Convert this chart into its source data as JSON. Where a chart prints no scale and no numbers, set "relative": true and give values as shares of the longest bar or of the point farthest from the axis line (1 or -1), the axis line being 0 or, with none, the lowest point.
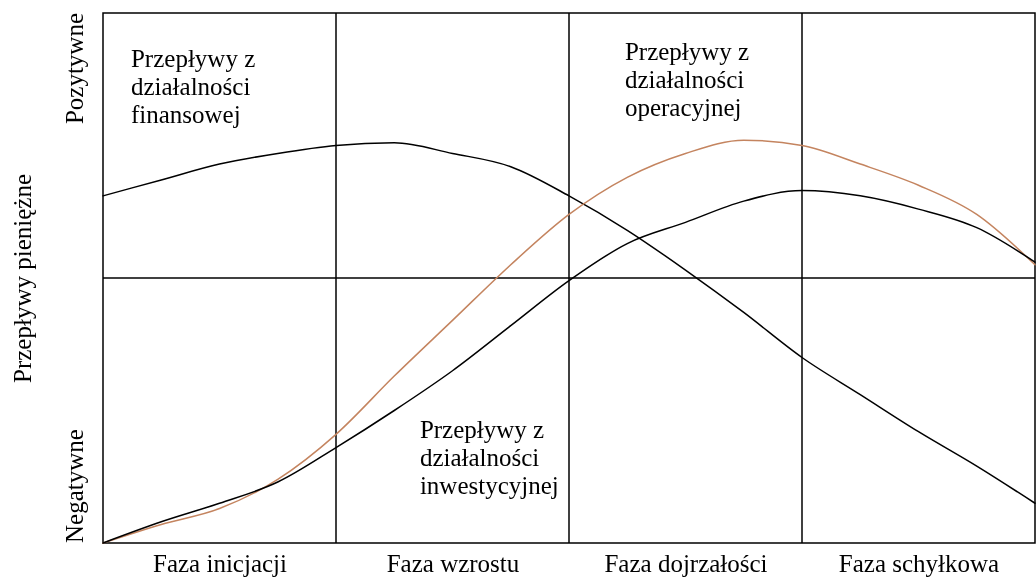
{
  "chart_data": {
    "type": "line",
    "relative": true,
    "ylabel": "Przepływy pieniężne",
    "annotations": [
      "Pozytywne",
      "Negatywne"
    ],
    "categories": [
      null,
      null,
      "Faza inicjacji",
      null,
      null,
      null,
      "Faza wzrostu",
      null,
      null,
      null,
      "Faza dojrzałości",
      null,
      null,
      null,
      "Faza schyłkowa",
      null,
      null
    ],
    "grid": "x",
    "ref_lines": [
      {
        "axis": "y",
        "value": 0,
        "color": "#000000"
      }
    ],
    "series": [
      {
        "name": "Przepływy z działalności finansowej",
        "color": "#000000",
        "values": [
          0.31,
          0.37,
          0.43,
          0.47,
          0.5,
          0.51,
          0.47,
          0.42,
          0.31,
          0.18,
          0.03,
          -0.13,
          -0.3,
          -0.44,
          -0.58,
          -0.71,
          -0.85
        ]
      },
      {
        "name": "Przepływy z działalności operacyjnej",
        "color": "#c4845f",
        "values": [
          -1,
          -0.93,
          -0.87,
          -0.76,
          -0.59,
          -0.37,
          -0.16,
          0.05,
          0.24,
          0.38,
          0.47,
          0.52,
          0.5,
          0.43,
          0.35,
          0.24,
          0.05
        ]
      },
      {
        "name": "Przepływy z działalności inwestycyjnej",
        "color": "#000000",
        "values": [
          -1,
          -0.92,
          -0.85,
          -0.77,
          -0.64,
          -0.5,
          -0.35,
          -0.18,
          -0.01,
          0.13,
          0.21,
          0.29,
          0.33,
          0.31,
          0.26,
          0.19,
          0.06
        ]
      }
    ]
  }
}
